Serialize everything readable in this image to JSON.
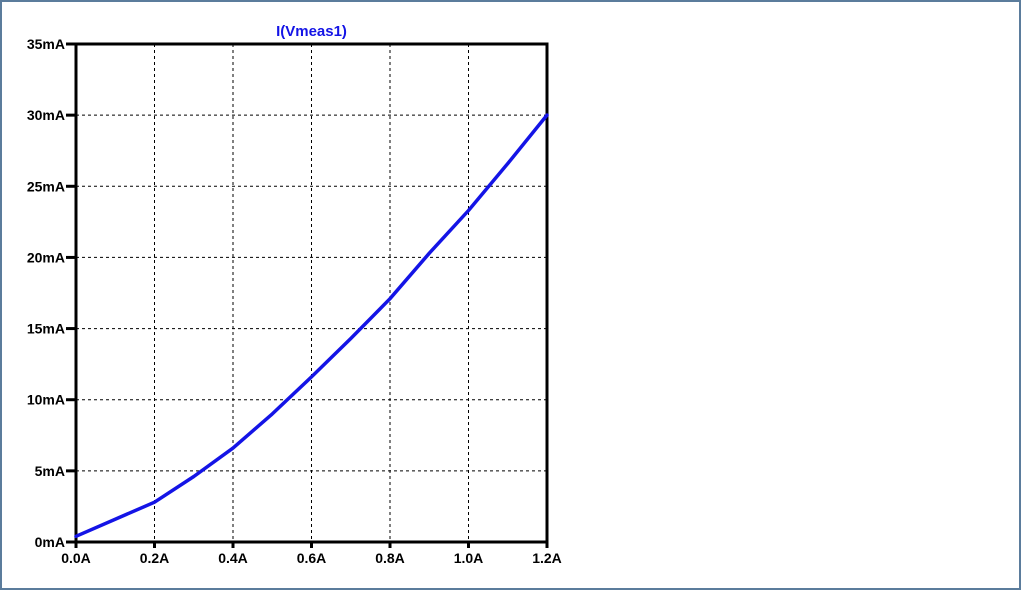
{
  "chart_data": {
    "type": "line",
    "title": "I(Vmeas1)",
    "xlabel": "",
    "ylabel": "",
    "xlim": [
      0,
      1.2
    ],
    "ylim": [
      0,
      35
    ],
    "x_ticks": [
      {
        "value": 0.0,
        "label": "0.0A"
      },
      {
        "value": 0.2,
        "label": "0.2A"
      },
      {
        "value": 0.4,
        "label": "0.4A"
      },
      {
        "value": 0.6,
        "label": "0.6A"
      },
      {
        "value": 0.8,
        "label": "0.8A"
      },
      {
        "value": 1.0,
        "label": "1.0A"
      },
      {
        "value": 1.2,
        "label": "1.2A"
      }
    ],
    "y_ticks": [
      {
        "value": 0,
        "label": "0mA"
      },
      {
        "value": 5,
        "label": "5mA"
      },
      {
        "value": 10,
        "label": "10mA"
      },
      {
        "value": 15,
        "label": "15mA"
      },
      {
        "value": 20,
        "label": "20mA"
      },
      {
        "value": 25,
        "label": "25mA"
      },
      {
        "value": 30,
        "label": "30mA"
      },
      {
        "value": 35,
        "label": "35mA"
      }
    ],
    "grid": true,
    "series": [
      {
        "name": "I(Vmeas1)",
        "color": "#1414e6",
        "x": [
          0.0,
          0.2,
          0.3,
          0.4,
          0.5,
          0.6,
          0.7,
          0.8,
          0.9,
          1.0,
          1.1,
          1.2
        ],
        "y": [
          0.4,
          2.8,
          4.6,
          6.6,
          9.0,
          11.6,
          14.3,
          17.1,
          20.3,
          23.3,
          26.6,
          30.0
        ]
      }
    ]
  },
  "colors": {
    "window_border": "#5b7c9c",
    "axis": "#000000",
    "grid": "#000000",
    "trace": "#1414e6"
  }
}
